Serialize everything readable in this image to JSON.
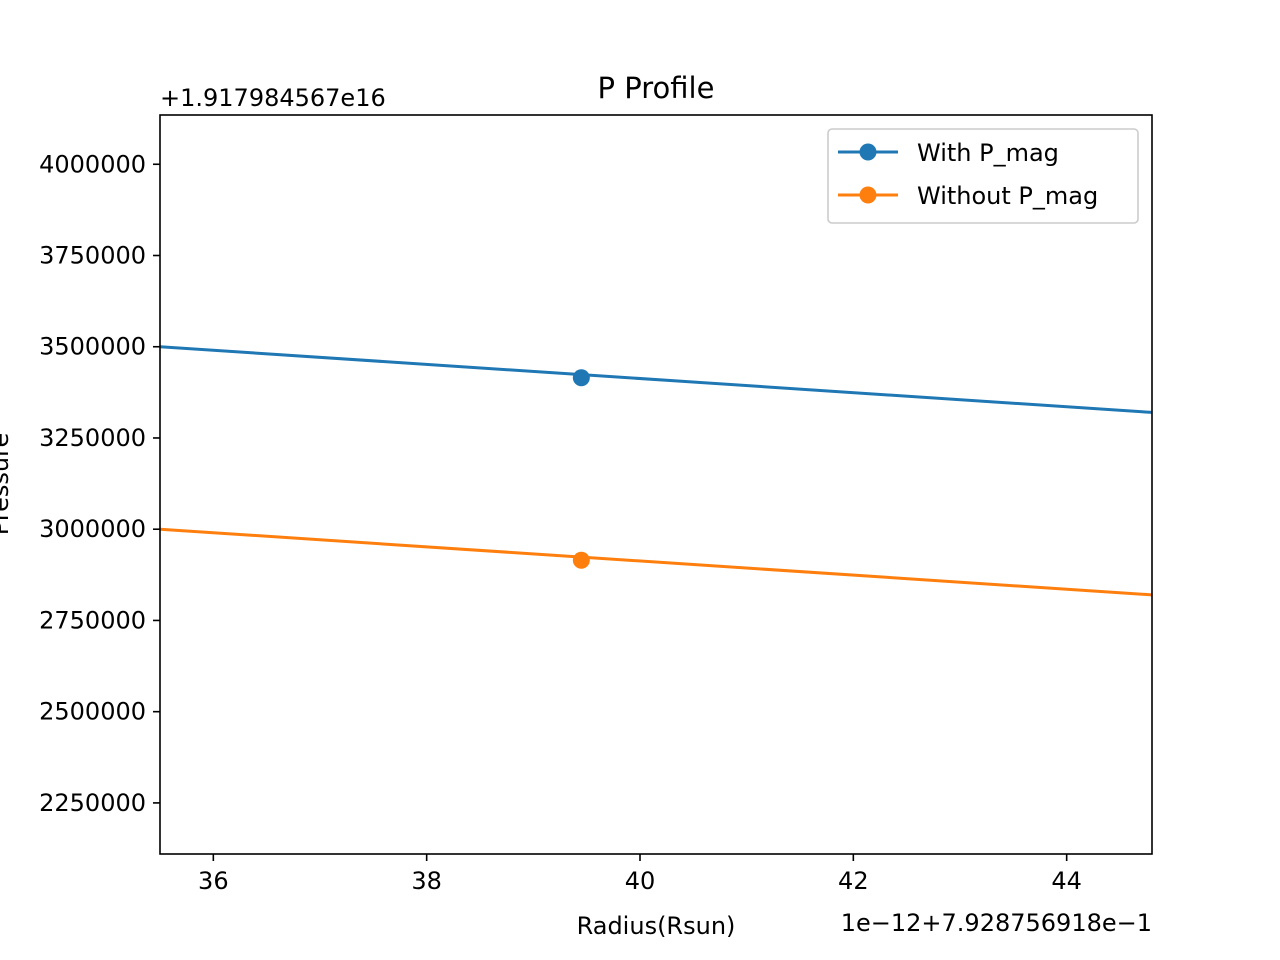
{
  "chart_data": {
    "type": "line",
    "title": "P Profile",
    "xlabel": "Radius(Rsun)",
    "ylabel": "Pressure",
    "x_offset_label": "1e−12+7.928756918e−1",
    "y_offset_label": "+1.917984567e16",
    "xlim": [
      35.5,
      44.8
    ],
    "ylim": [
      2110000,
      4135000
    ],
    "x_ticks": [
      36,
      38,
      40,
      42,
      44
    ],
    "x_tick_labels": [
      "36",
      "38",
      "40",
      "42",
      "44"
    ],
    "y_ticks": [
      2250000,
      2500000,
      2750000,
      3000000,
      3250000,
      3500000,
      3750000,
      4000000
    ],
    "y_tick_labels": [
      "2250000",
      "2500000",
      "2750000",
      "3000000",
      "3250000",
      "3500000",
      "3750000",
      "4000000"
    ],
    "grid": false,
    "legend_position": "top-right",
    "series": [
      {
        "name": "With P_mag",
        "color": "#1f77b4",
        "line": [
          [
            35.5,
            3500000
          ],
          [
            44.8,
            3320000
          ]
        ],
        "markers": [
          [
            39.45,
            3415000
          ]
        ]
      },
      {
        "name": "Without P_mag",
        "color": "#ff7f0e",
        "line": [
          [
            35.5,
            3000000
          ],
          [
            44.8,
            2820000
          ]
        ],
        "markers": [
          [
            39.45,
            2915000
          ]
        ]
      }
    ]
  }
}
